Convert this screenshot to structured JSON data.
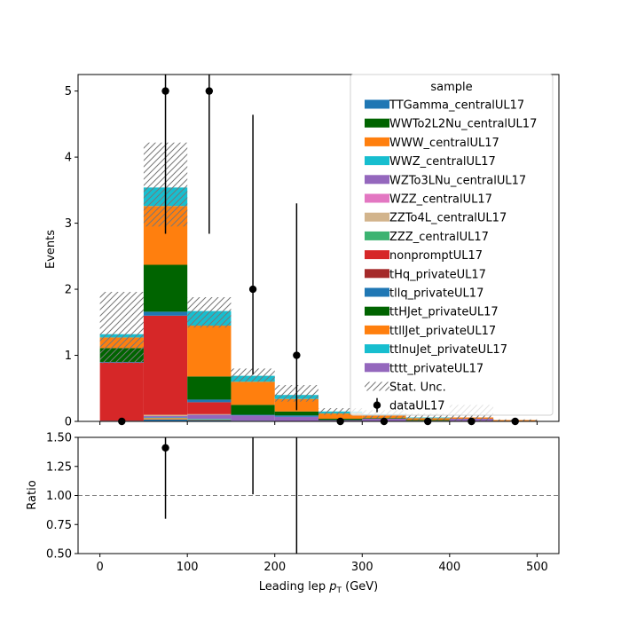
{
  "chart_data": [
    {
      "type": "bar",
      "stacked": true,
      "panel": "main",
      "xlabel_main": "Leading lep ",
      "xlabel_sub": "T",
      "xlabel_italic": "p",
      "xlabel_unit": " (GeV)",
      "ylabel": "Events",
      "xlim": [
        -25,
        525
      ],
      "ylim": [
        0,
        5.25
      ],
      "xticks": [
        "0",
        "100",
        "200",
        "300",
        "400",
        "500"
      ],
      "xtick_values": [
        0,
        100,
        200,
        300,
        400,
        500
      ],
      "yticks": [
        "0",
        "1",
        "2",
        "3",
        "4",
        "5"
      ],
      "ytick_values": [
        0,
        1,
        2,
        3,
        4,
        5
      ],
      "bin_edges": [
        0,
        50,
        100,
        150,
        200,
        250,
        300,
        350,
        400,
        450,
        500
      ],
      "legend_title": "sample",
      "legend_position": "top-right",
      "series": [
        {
          "name": "TTGamma_centralUL17",
          "color": "#1f77b4",
          "values": [
            0.01,
            0.03,
            0.02,
            0.01,
            0.0,
            0.0,
            0.0,
            0.0,
            0.0,
            0.0
          ]
        },
        {
          "name": "WWTo2L2Nu_centralUL17",
          "color": "#006400",
          "values": [
            0.0,
            0.0,
            0.0,
            0.0,
            0.0,
            0.0,
            0.0,
            0.0,
            0.0,
            0.0
          ]
        },
        {
          "name": "WWW_centralUL17",
          "color": "#ff7f0e",
          "values": [
            0.0,
            0.02,
            0.01,
            0.0,
            0.0,
            0.0,
            0.0,
            0.0,
            0.0,
            0.0
          ]
        },
        {
          "name": "WWZ_centralUL17",
          "color": "#17becf",
          "values": [
            0.0,
            0.01,
            0.01,
            0.0,
            0.0,
            0.0,
            0.0,
            0.0,
            0.0,
            0.0
          ]
        },
        {
          "name": "WZTo3LNu_centralUL17",
          "color": "#9467bd",
          "values": [
            0.0,
            0.02,
            0.06,
            0.08,
            0.07,
            0.02,
            0.04,
            0.01,
            0.04,
            0.0
          ]
        },
        {
          "name": "WZZ_centralUL17",
          "color": "#e377c2",
          "values": [
            0.0,
            0.0,
            0.0,
            0.0,
            0.0,
            0.0,
            0.0,
            0.0,
            0.0,
            0.0
          ]
        },
        {
          "name": "ZZTo4L_centralUL17",
          "color": "#d2b48c",
          "values": [
            0.0,
            0.02,
            0.01,
            0.0,
            0.0,
            0.0,
            0.0,
            0.0,
            0.0,
            0.0
          ]
        },
        {
          "name": "ZZZ_centralUL17",
          "color": "#3cb371",
          "values": [
            0.0,
            0.0,
            0.0,
            0.0,
            0.0,
            0.0,
            0.0,
            0.0,
            0.0,
            0.0
          ]
        },
        {
          "name": "nonpromptUL17",
          "color": "#d62728",
          "values": [
            0.88,
            1.5,
            0.18,
            0.0,
            0.0,
            0.0,
            0.0,
            0.0,
            0.0,
            0.0
          ]
        },
        {
          "name": "tHq_privateUL17",
          "color": "#a52a2a",
          "values": [
            0.0,
            0.0,
            0.0,
            0.0,
            0.0,
            0.0,
            0.0,
            0.0,
            0.0,
            0.0
          ]
        },
        {
          "name": "tllq_privateUL17",
          "color": "#1f77b4",
          "values": [
            0.01,
            0.06,
            0.04,
            0.01,
            0.02,
            0.0,
            0.0,
            0.0,
            0.0,
            0.0
          ]
        },
        {
          "name": "ttHJet_privateUL17",
          "color": "#006400",
          "values": [
            0.21,
            0.71,
            0.35,
            0.15,
            0.06,
            0.02,
            0.01,
            0.01,
            0.0,
            0.0
          ]
        },
        {
          "name": "ttllJet_privateUL17",
          "color": "#ff7f0e",
          "values": [
            0.16,
            0.89,
            0.77,
            0.35,
            0.19,
            0.08,
            0.05,
            0.03,
            0.02,
            0.02
          ]
        },
        {
          "name": "ttlnuJet_privateUL17",
          "color": "#17becf",
          "values": [
            0.05,
            0.28,
            0.22,
            0.09,
            0.06,
            0.03,
            0.01,
            0.01,
            0.0,
            0.0
          ]
        },
        {
          "name": "tttt_privateUL17",
          "color": "#9467bd",
          "values": [
            0.0,
            0.0,
            0.0,
            0.0,
            0.0,
            0.0,
            0.0,
            0.0,
            0.0,
            0.0
          ]
        }
      ],
      "stat_unc": {
        "name": "Stat. Unc.",
        "low": [
          0.88,
          2.95,
          1.42,
          0.6,
          0.3,
          0.1,
          0.05,
          0.02,
          0.0,
          0.0
        ],
        "high": [
          1.96,
          4.22,
          1.88,
          0.8,
          0.55,
          0.2,
          0.17,
          0.12,
          0.25,
          0.03
        ]
      },
      "data": {
        "name": "dataUL17",
        "x": [
          25,
          75,
          125,
          175,
          225,
          275,
          325,
          375,
          425,
          475
        ],
        "y": [
          0,
          5,
          5,
          2,
          1,
          0,
          0,
          0,
          0,
          0
        ],
        "err_low": [
          0,
          2.16,
          2.16,
          1.29,
          0.83,
          0,
          0,
          0,
          0,
          0
        ],
        "err_high": [
          0,
          3.38,
          3.38,
          2.64,
          2.3,
          0,
          0,
          0,
          0,
          0
        ]
      }
    },
    {
      "type": "scatter",
      "panel": "ratio",
      "ylabel": "Ratio",
      "xlim": [
        -25,
        525
      ],
      "ylim": [
        0.5,
        1.5
      ],
      "yticks": [
        "0.50",
        "0.75",
        "1.00",
        "1.25",
        "1.50"
      ],
      "ytick_values": [
        0.5,
        0.75,
        1.0,
        1.25,
        1.5
      ],
      "reference_line": 1.0,
      "points": [
        {
          "x": 75,
          "y": 1.41,
          "y_low": 0.8,
          "y_high": 2.2
        }
      ],
      "error_lines": [
        {
          "x": 175,
          "y_low": 1.01,
          "y_high": 2.0
        },
        {
          "x": 225,
          "y_low": 0.3,
          "y_high": 2.0
        }
      ]
    }
  ]
}
